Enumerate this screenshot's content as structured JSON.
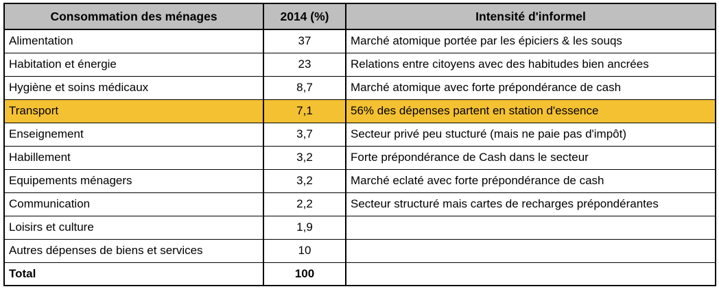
{
  "headers": {
    "col1": "Consommation des ménages",
    "col2": "2014 (%)",
    "col3": "Intensité d'informel"
  },
  "rows": [
    {
      "category": "Alimentation",
      "value": "37",
      "note": "Marché atomique  portée par les épiciers & les souqs"
    },
    {
      "category": "Habitation et énergie",
      "value": "23",
      "note": "Relations entre citoyens avec des habitudes bien ancrées"
    },
    {
      "category": "Hygiène et soins médicaux",
      "value": "8,7",
      "note": "Marché atomique avec forte prépondérance de cash"
    },
    {
      "category": "Transport",
      "value": "7,1",
      "note": "56% des dépenses partent en station d'essence",
      "highlight": true
    },
    {
      "category": "Enseignement",
      "value": "3,7",
      "note": "Secteur privé peu stucturé (mais ne paie pas d'impôt)"
    },
    {
      "category": "Habillement",
      "value": "3,2",
      "note": "Forte prépondérance de Cash dans le secteur"
    },
    {
      "category": "Equipements ménagers",
      "value": "3,2",
      "note": "Marché eclaté avec  forte prépondérance de cash"
    },
    {
      "category": "Communication",
      "value": "2,2",
      "note": "Secteur structuré mais cartes de recharges prépondérantes"
    },
    {
      "category": "Loisirs et culture",
      "value": "1,9",
      "note": ""
    },
    {
      "category": "Autres dépenses de biens et services",
      "value": "10",
      "note": ""
    }
  ],
  "total": {
    "label": "Total",
    "value": "100",
    "note": ""
  },
  "colors": {
    "header_bg": "#bfbfbf",
    "highlight_bg": "#f4c132",
    "border": "#000000"
  }
}
